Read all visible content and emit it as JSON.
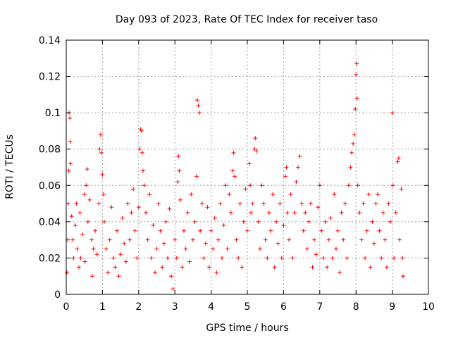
{
  "chart_data": {
    "type": "scatter",
    "title": "Day 093 of 2023, Rate Of TEC Index for receiver taso",
    "xlabel": "GPS time / hours",
    "ylabel": "ROTI / TECUs",
    "xlim": [
      0,
      10
    ],
    "ylim": [
      0,
      0.14
    ],
    "x_ticks": [
      "0",
      "1",
      "2",
      "3",
      "4",
      "5",
      "6",
      "7",
      "8",
      "9",
      "10"
    ],
    "y_ticks": [
      "0",
      "0.02",
      "0.04",
      "0.06",
      "0.08",
      "0.1",
      "0.12",
      "0.14"
    ],
    "grid": true,
    "marker": "+",
    "color": "#ff0000",
    "series": [
      {
        "points": [
          [
            0.02,
            0.012
          ],
          [
            0.04,
            0.03
          ],
          [
            0.05,
            0.05
          ],
          [
            0.07,
            0.068
          ],
          [
            0.08,
            0.1
          ],
          [
            0.1,
            0.097
          ],
          [
            0.11,
            0.084
          ],
          [
            0.12,
            0.072
          ],
          [
            0.15,
            0.043
          ],
          [
            0.18,
            0.03
          ],
          [
            0.2,
            0.02
          ],
          [
            0.25,
            0.038
          ],
          [
            0.28,
            0.05
          ],
          [
            0.3,
            0.025
          ],
          [
            0.35,
            0.015
          ],
          [
            0.38,
            0.045
          ],
          [
            0.4,
            0.02
          ],
          [
            0.45,
            0.033
          ],
          [
            0.5,
            0.055
          ],
          [
            0.52,
            0.018
          ],
          [
            0.55,
            0.06
          ],
          [
            0.58,
            0.069
          ],
          [
            0.6,
            0.04
          ],
          [
            0.65,
            0.052
          ],
          [
            0.7,
            0.03
          ],
          [
            0.72,
            0.01
          ],
          [
            0.75,
            0.025
          ],
          [
            0.8,
            0.035
          ],
          [
            0.85,
            0.022
          ],
          [
            0.9,
            0.05
          ],
          [
            0.92,
            0.08
          ],
          [
            0.95,
            0.088
          ],
          [
            0.97,
            0.078
          ],
          [
            1.0,
            0.066
          ],
          [
            1.03,
            0.055
          ],
          [
            1.05,
            0.04
          ],
          [
            1.1,
            0.025
          ],
          [
            1.15,
            0.012
          ],
          [
            1.2,
            0.03
          ],
          [
            1.25,
            0.048
          ],
          [
            1.3,
            0.02
          ],
          [
            1.35,
            0.015
          ],
          [
            1.4,
            0.035
          ],
          [
            1.45,
            0.01
          ],
          [
            1.5,
            0.022
          ],
          [
            1.55,
            0.042
          ],
          [
            1.6,
            0.028
          ],
          [
            1.65,
            0.018
          ],
          [
            1.7,
            0.05
          ],
          [
            1.75,
            0.03
          ],
          [
            1.8,
            0.045
          ],
          [
            1.85,
            0.058
          ],
          [
            1.9,
            0.035
          ],
          [
            1.95,
            0.02
          ],
          [
            2.0,
            0.048
          ],
          [
            2.03,
            0.08
          ],
          [
            2.05,
            0.091
          ],
          [
            2.08,
            0.09
          ],
          [
            2.1,
            0.078
          ],
          [
            2.12,
            0.068
          ],
          [
            2.15,
            0.06
          ],
          [
            2.2,
            0.045
          ],
          [
            2.25,
            0.03
          ],
          [
            2.3,
            0.055
          ],
          [
            2.35,
            0.02
          ],
          [
            2.4,
            0.038
          ],
          [
            2.45,
            0.012
          ],
          [
            2.5,
            0.025
          ],
          [
            2.55,
            0.05
          ],
          [
            2.6,
            0.035
          ],
          [
            2.65,
            0.015
          ],
          [
            2.7,
            0.028
          ],
          [
            2.75,
            0.04
          ],
          [
            2.8,
            0.02
          ],
          [
            2.85,
            0.047
          ],
          [
            2.9,
            0.01
          ],
          [
            2.95,
            0.003
          ],
          [
            3.0,
            0.03
          ],
          [
            3.05,
            0.02
          ],
          [
            3.08,
            0.062
          ],
          [
            3.1,
            0.076
          ],
          [
            3.12,
            0.068
          ],
          [
            3.15,
            0.052
          ],
          [
            3.2,
            0.015
          ],
          [
            3.25,
            0.035
          ],
          [
            3.3,
            0.025
          ],
          [
            3.35,
            0.045
          ],
          [
            3.4,
            0.018
          ],
          [
            3.45,
            0.055
          ],
          [
            3.5,
            0.03
          ],
          [
            3.55,
            0.04
          ],
          [
            3.6,
            0.065
          ],
          [
            3.62,
            0.107
          ],
          [
            3.65,
            0.104
          ],
          [
            3.68,
            0.1
          ],
          [
            3.7,
            0.035
          ],
          [
            3.75,
            0.05
          ],
          [
            3.8,
            0.02
          ],
          [
            3.85,
            0.028
          ],
          [
            3.9,
            0.048
          ],
          [
            3.95,
            0.015
          ],
          [
            4.0,
            0.035
          ],
          [
            4.05,
            0.025
          ],
          [
            4.1,
            0.042
          ],
          [
            4.15,
            0.012
          ],
          [
            4.2,
            0.03
          ],
          [
            4.25,
            0.05
          ],
          [
            4.3,
            0.02
          ],
          [
            4.35,
            0.038
          ],
          [
            4.4,
            0.06
          ],
          [
            4.45,
            0.025
          ],
          [
            4.5,
            0.055
          ],
          [
            4.55,
            0.045
          ],
          [
            4.6,
            0.068
          ],
          [
            4.62,
            0.078
          ],
          [
            4.65,
            0.065
          ],
          [
            4.7,
            0.03
          ],
          [
            4.75,
            0.02
          ],
          [
            4.8,
            0.05
          ],
          [
            4.85,
            0.015
          ],
          [
            4.9,
            0.04
          ],
          [
            4.95,
            0.058
          ],
          [
            5.0,
            0.035
          ],
          [
            5.05,
            0.072
          ],
          [
            5.08,
            0.06
          ],
          [
            5.1,
            0.045
          ],
          [
            5.15,
            0.05
          ],
          [
            5.2,
            0.08
          ],
          [
            5.22,
            0.086
          ],
          [
            5.25,
            0.079
          ],
          [
            5.3,
            0.04
          ],
          [
            5.35,
            0.025
          ],
          [
            5.4,
            0.06
          ],
          [
            5.45,
            0.05
          ],
          [
            5.5,
            0.03
          ],
          [
            5.55,
            0.02
          ],
          [
            5.6,
            0.045
          ],
          [
            5.65,
            0.035
          ],
          [
            5.7,
            0.055
          ],
          [
            5.75,
            0.015
          ],
          [
            5.8,
            0.04
          ],
          [
            5.85,
            0.028
          ],
          [
            5.9,
            0.05
          ],
          [
            5.95,
            0.02
          ],
          [
            6.0,
            0.038
          ],
          [
            6.05,
            0.065
          ],
          [
            6.08,
            0.07
          ],
          [
            6.1,
            0.045
          ],
          [
            6.15,
            0.03
          ],
          [
            6.2,
            0.055
          ],
          [
            6.25,
            0.02
          ],
          [
            6.3,
            0.045
          ],
          [
            6.35,
            0.062
          ],
          [
            6.4,
            0.07
          ],
          [
            6.45,
            0.076
          ],
          [
            6.5,
            0.05
          ],
          [
            6.55,
            0.035
          ],
          [
            6.6,
            0.045
          ],
          [
            6.65,
            0.025
          ],
          [
            6.7,
            0.04
          ],
          [
            6.75,
            0.05
          ],
          [
            6.8,
            0.015
          ],
          [
            6.85,
            0.03
          ],
          [
            6.9,
            0.022
          ],
          [
            6.95,
            0.048
          ],
          [
            7.0,
            0.06
          ],
          [
            7.05,
            0.035
          ],
          [
            7.1,
            0.02
          ],
          [
            7.15,
            0.04
          ],
          [
            7.2,
            0.015
          ],
          [
            7.25,
            0.03
          ],
          [
            7.3,
            0.042
          ],
          [
            7.35,
            0.02
          ],
          [
            7.4,
            0.055
          ],
          [
            7.45,
            0.025
          ],
          [
            7.5,
            0.035
          ],
          [
            7.55,
            0.012
          ],
          [
            7.6,
            0.045
          ],
          [
            7.65,
            0.03
          ],
          [
            7.7,
            0.05
          ],
          [
            7.75,
            0.02
          ],
          [
            7.8,
            0.06
          ],
          [
            7.85,
            0.07
          ],
          [
            7.88,
            0.078
          ],
          [
            7.92,
            0.083
          ],
          [
            7.95,
            0.088
          ],
          [
            7.98,
            0.102
          ],
          [
            8.0,
            0.121
          ],
          [
            8.02,
            0.127
          ],
          [
            8.03,
            0.108
          ],
          [
            8.05,
            0.06
          ],
          [
            8.1,
            0.045
          ],
          [
            8.15,
            0.03
          ],
          [
            8.2,
            0.05
          ],
          [
            8.25,
            0.02
          ],
          [
            8.3,
            0.035
          ],
          [
            8.35,
            0.055
          ],
          [
            8.4,
            0.015
          ],
          [
            8.45,
            0.04
          ],
          [
            8.5,
            0.028
          ],
          [
            8.55,
            0.05
          ],
          [
            8.6,
            0.055
          ],
          [
            8.65,
            0.035
          ],
          [
            8.7,
            0.02
          ],
          [
            8.75,
            0.045
          ],
          [
            8.8,
            0.03
          ],
          [
            8.85,
            0.015
          ],
          [
            8.9,
            0.05
          ],
          [
            8.95,
            0.04
          ],
          [
            9.0,
            0.1
          ],
          [
            9.02,
            0.06
          ],
          [
            9.05,
            0.02
          ],
          [
            9.1,
            0.045
          ],
          [
            9.15,
            0.073
          ],
          [
            9.18,
            0.075
          ],
          [
            9.2,
            0.03
          ],
          [
            9.25,
            0.058
          ],
          [
            9.28,
            0.02
          ],
          [
            9.3,
            0.01
          ]
        ]
      }
    ]
  }
}
